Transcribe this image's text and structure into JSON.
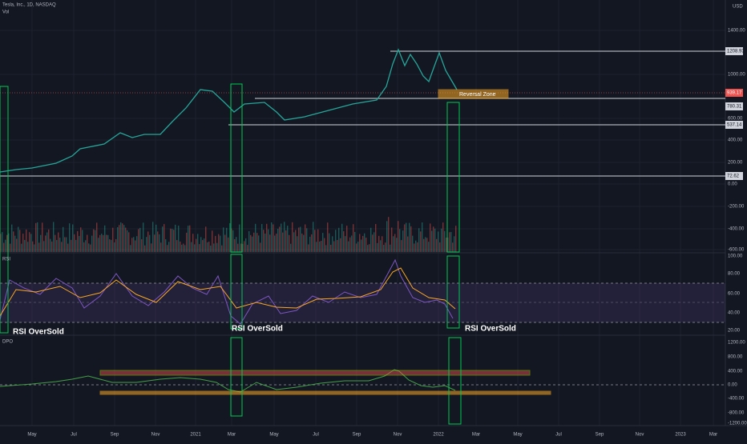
{
  "header": {
    "symbol": "Tesla, Inc., 1D, NASDAQ",
    "volume": "Vol",
    "currency": "USD"
  },
  "price_axis": [
    "1400.00",
    "1000.00",
    "600.00",
    "400.00",
    "200.00",
    "0.00",
    "-200.00",
    "-400.00",
    "-600.00"
  ],
  "price_levels": [
    "1208.93",
    "939.17",
    "780.31",
    "537.14",
    "72.62"
  ],
  "rsi": {
    "label": "RSI",
    "axis": [
      "100.00",
      "80.00",
      "60.00",
      "40.00",
      "20.00"
    ]
  },
  "dpo": {
    "label": "DPO",
    "axis": [
      "1200.00",
      "800.00",
      "400.00",
      "0.00",
      "-400.00",
      "-800.00",
      "-1200.00"
    ]
  },
  "time_axis": [
    "May",
    "Jul",
    "Sep",
    "Nov",
    "2021",
    "Mar",
    "May",
    "Jul",
    "Sep",
    "Nov",
    "2022",
    "Mar",
    "May",
    "Jul",
    "Sep",
    "Nov",
    "2023",
    "Mar"
  ],
  "annotations": {
    "reversal": "Reversal Zone",
    "oversold": [
      "RSI OverSold",
      "RSI OverSold",
      "RSI OverSold"
    ]
  }
}
